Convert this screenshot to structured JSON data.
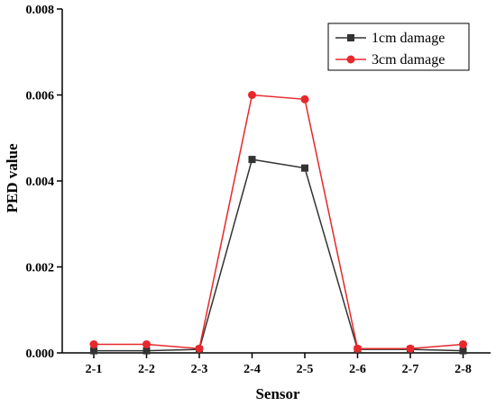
{
  "chart_data": {
    "type": "line",
    "xlabel": "Sensor",
    "ylabel": "PED value",
    "categories": [
      "2-1",
      "2-2",
      "2-3",
      "2-4",
      "2-5",
      "2-6",
      "2-7",
      "2-8"
    ],
    "ylim": [
      0,
      0.008
    ],
    "yticks": [
      "0.000",
      "0.002",
      "0.004",
      "0.006",
      "0.008"
    ],
    "grid": false,
    "legend_position": "top-right",
    "series": [
      {
        "name": "1cm damage",
        "color": "#333333",
        "marker": "square",
        "values": [
          5e-05,
          5e-05,
          8e-05,
          0.0045,
          0.0043,
          8e-05,
          8e-05,
          5e-05
        ]
      },
      {
        "name": "3cm damage",
        "color": "#e8282b",
        "marker": "circle",
        "values": [
          0.0002,
          0.0002,
          0.0001,
          0.006,
          0.0059,
          0.0001,
          0.0001,
          0.0002
        ]
      }
    ]
  }
}
